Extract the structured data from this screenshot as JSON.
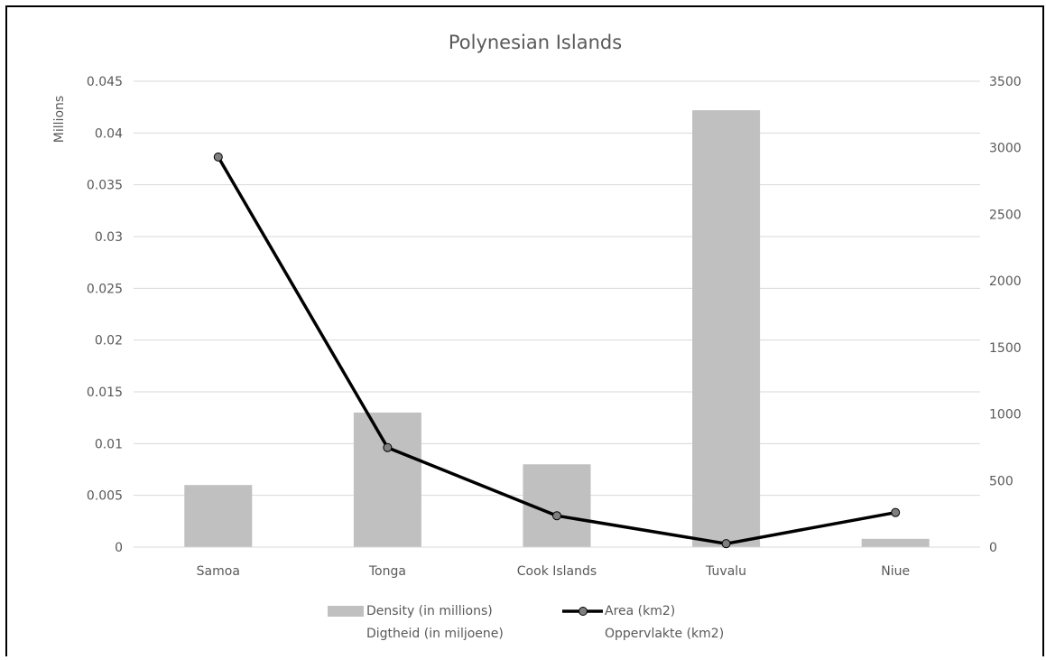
{
  "chart_data": {
    "type": "bar",
    "title": "Polynesian Islands",
    "categories": [
      "Samoa",
      "Tonga",
      "Cook Islands",
      "Tuvalu",
      "Niue"
    ],
    "y_left": {
      "label": "Millions",
      "ylim": [
        0,
        0.045
      ],
      "ticks": [
        "0",
        "0.005",
        "0.01",
        "0.015",
        "0.02",
        "0.025",
        "0.03",
        "0.035",
        "0.04",
        "0.045"
      ]
    },
    "y_right": {
      "ylim": [
        0,
        3500
      ],
      "ticks": [
        "0",
        "500",
        "1000",
        "1500",
        "2000",
        "2500",
        "3000",
        "3500"
      ]
    },
    "series": [
      {
        "name": "Density (in millions)",
        "name2": "Digtheid (in miljoene)",
        "type": "bar",
        "axis": "left",
        "color": "#c0c0c0",
        "values": [
          0.006,
          0.013,
          0.008,
          0.0422,
          0.0008
        ]
      },
      {
        "name": "Area (km2)",
        "name2": "Oppervlakte (km2)",
        "type": "line",
        "axis": "right",
        "color": "#000000",
        "marker_color": "#7f7f7f",
        "values": [
          2931,
          748,
          236,
          26,
          260
        ]
      }
    ],
    "grid": true,
    "legend_position": "bottom"
  }
}
